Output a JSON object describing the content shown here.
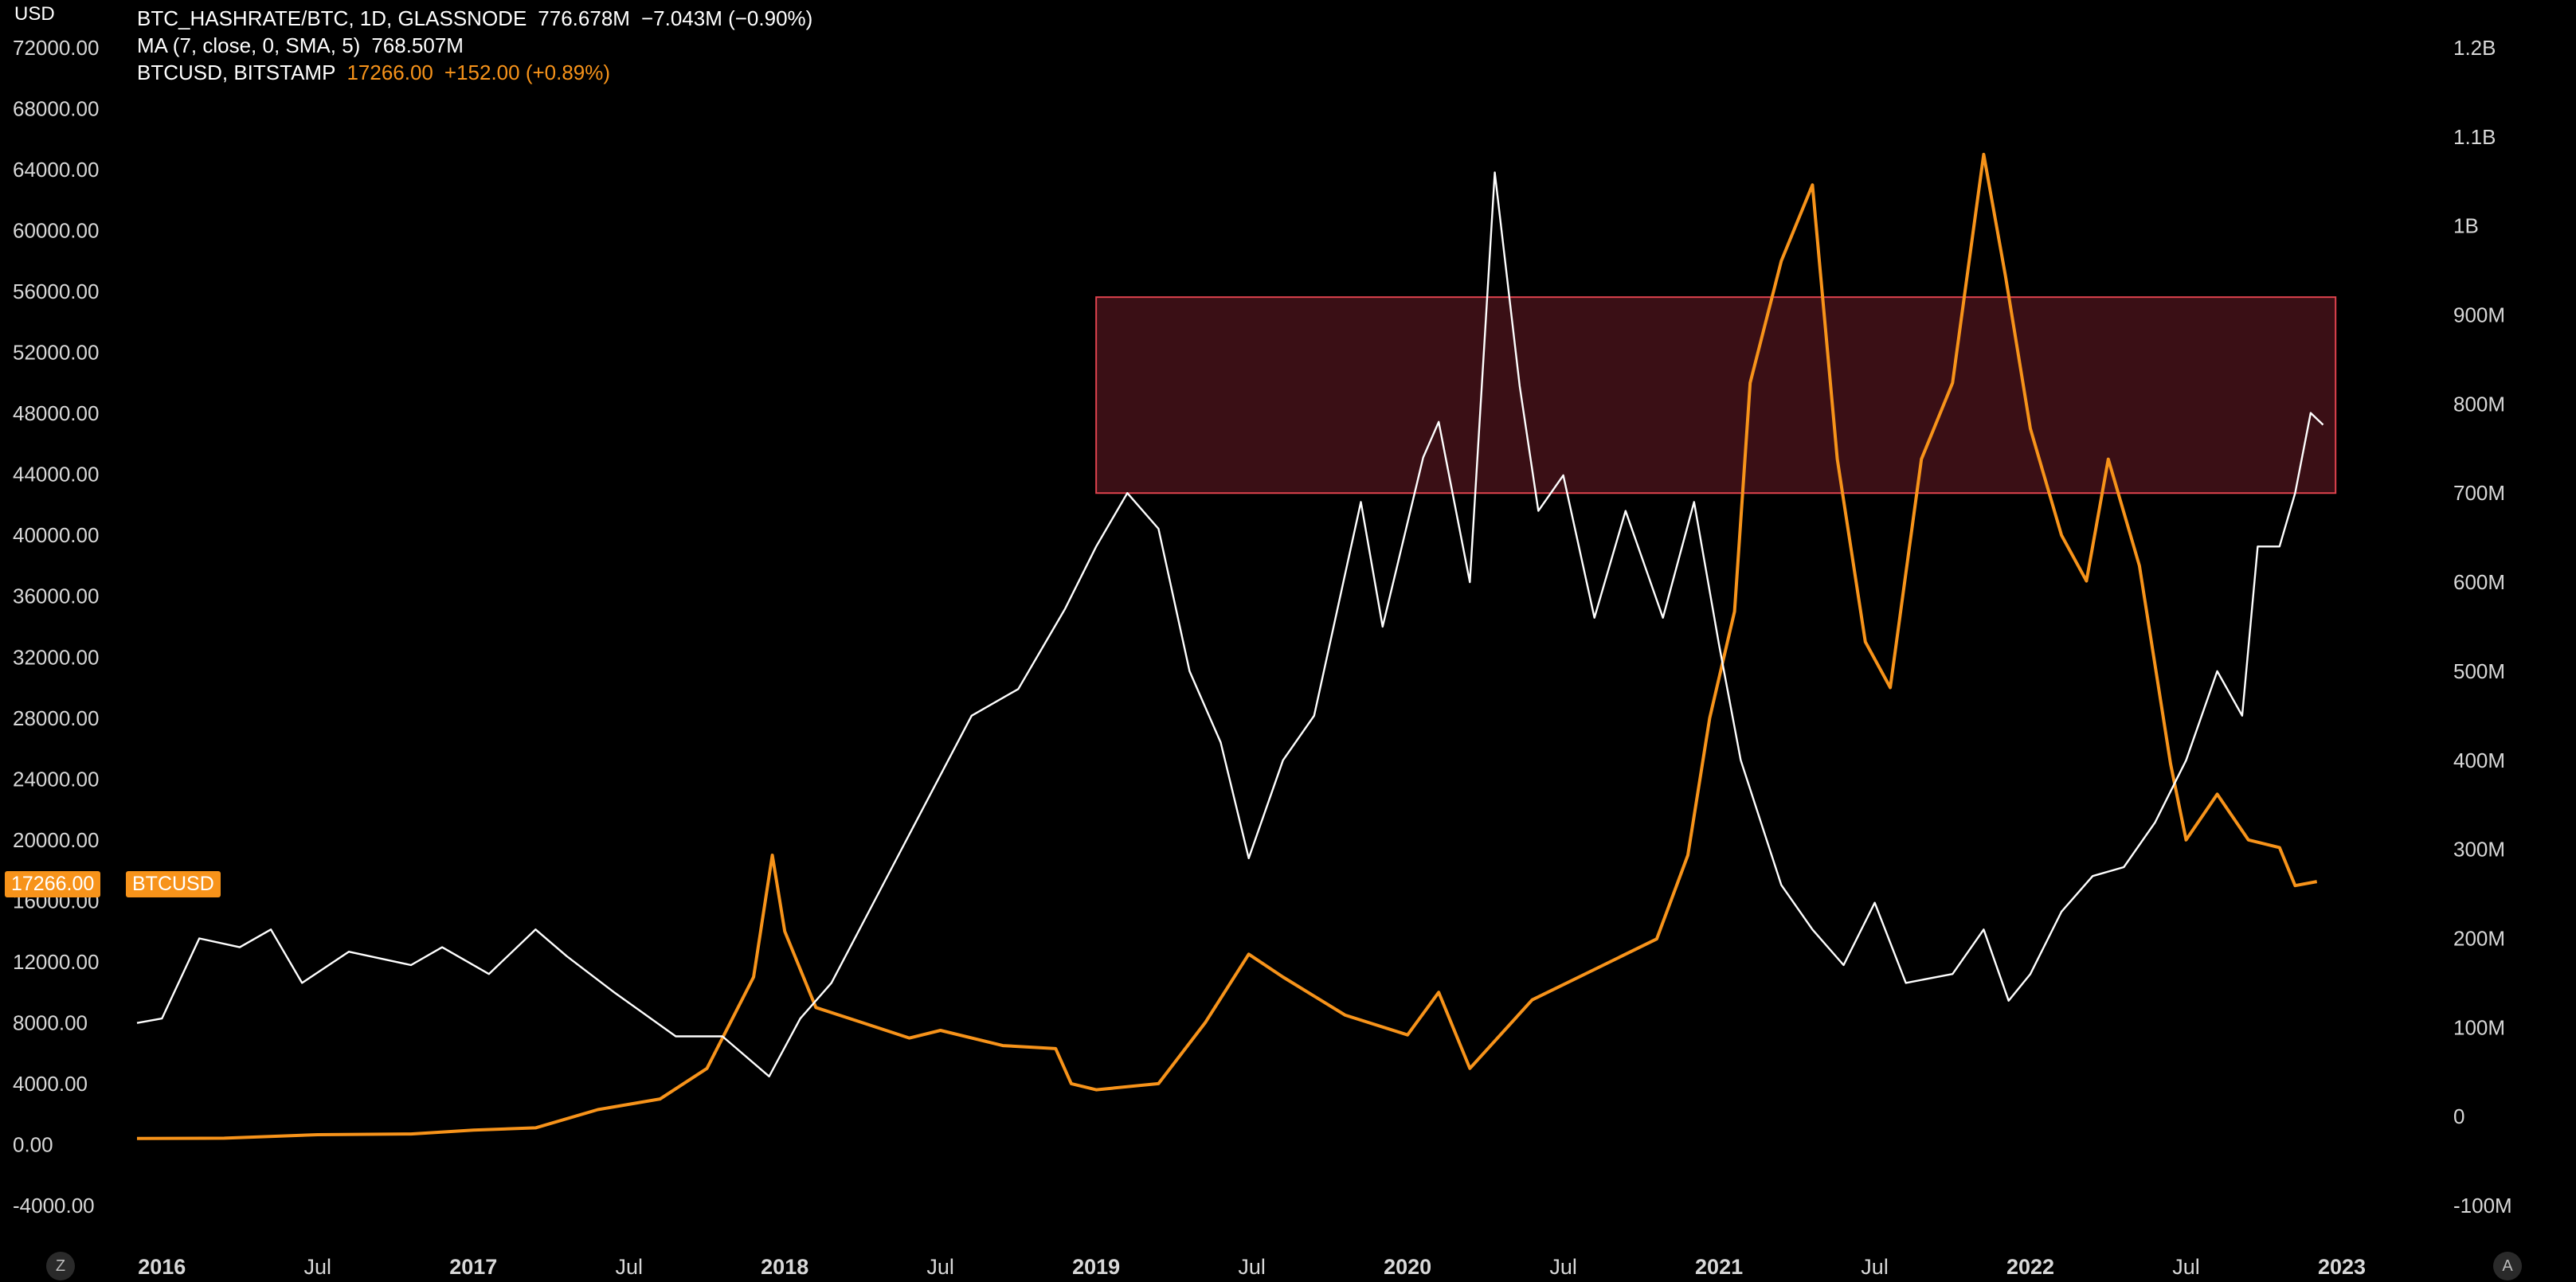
{
  "legend": {
    "line1": {
      "symbol": "BTC_HASHRATE/BTC, 1D, GLASSNODE",
      "value": "776.678M",
      "change": "−7.043M (−0.90%)"
    },
    "line2": {
      "symbol": "MA (7, close, 0, SMA, 5)",
      "value": "768.507M"
    },
    "line3": {
      "symbol": "BTCUSD, BITSTAMP",
      "value": "17266.00",
      "change": "+152.00 (+0.89%)"
    }
  },
  "left_axis_unit": "USD",
  "price_badge": {
    "value": "17266.00",
    "label": "BTCUSD"
  },
  "buttons": {
    "left": "Z",
    "right": "A"
  },
  "colors": {
    "btc": "#f7931a",
    "ratio": "#ffffff",
    "zone_fill": "#3a0f15",
    "zone_border": "#e0434e",
    "background": "#000000"
  },
  "chart_data": {
    "type": "line",
    "x_ticks": [
      "2016",
      "Jul",
      "2017",
      "Jul",
      "2018",
      "Jul",
      "2019",
      "Jul",
      "2020",
      "Jul",
      "2021",
      "Jul",
      "2022",
      "Jul",
      "2023"
    ],
    "x_tick_dates": [
      2016.0,
      2016.5,
      2017.0,
      2017.5,
      2018.0,
      2018.5,
      2019.0,
      2019.5,
      2020.0,
      2020.5,
      2021.0,
      2021.5,
      2022.0,
      2022.5,
      2023.0
    ],
    "x_range": [
      2015.92,
      2023.0
    ],
    "left_axis": {
      "ticks": [
        "72000.00",
        "68000.00",
        "64000.00",
        "60000.00",
        "56000.00",
        "52000.00",
        "48000.00",
        "44000.00",
        "40000.00",
        "36000.00",
        "32000.00",
        "28000.00",
        "24000.00",
        "20000.00",
        "16000.00",
        "12000.00",
        "8000.00",
        "4000.00",
        "0.00",
        "-4000.00"
      ],
      "range": [
        -4000,
        72000
      ]
    },
    "right_axis": {
      "ticks": [
        "1.2B",
        "1.1B",
        "1B",
        "900M",
        "800M",
        "700M",
        "600M",
        "500M",
        "400M",
        "300M",
        "200M",
        "100M",
        "0",
        "-100M"
      ],
      "range": [
        -100000000,
        1200000000
      ]
    },
    "zone": {
      "x": [
        2019.0,
        2022.98
      ],
      "y_right": [
        700000000,
        920000000
      ]
    },
    "series": [
      {
        "name": "BTCUSD",
        "axis": "left",
        "points": [
          [
            2015.92,
            400
          ],
          [
            2016.2,
            420
          ],
          [
            2016.5,
            650
          ],
          [
            2016.8,
            700
          ],
          [
            2017.0,
            950
          ],
          [
            2017.2,
            1100
          ],
          [
            2017.4,
            2300
          ],
          [
            2017.6,
            3000
          ],
          [
            2017.75,
            5000
          ],
          [
            2017.9,
            11000
          ],
          [
            2017.96,
            19000
          ],
          [
            2018.0,
            14000
          ],
          [
            2018.1,
            9000
          ],
          [
            2018.25,
            8000
          ],
          [
            2018.4,
            7000
          ],
          [
            2018.5,
            7500
          ],
          [
            2018.7,
            6500
          ],
          [
            2018.87,
            6300
          ],
          [
            2018.92,
            4000
          ],
          [
            2019.0,
            3600
          ],
          [
            2019.2,
            4000
          ],
          [
            2019.35,
            8000
          ],
          [
            2019.49,
            12500
          ],
          [
            2019.6,
            11000
          ],
          [
            2019.8,
            8500
          ],
          [
            2020.0,
            7200
          ],
          [
            2020.1,
            10000
          ],
          [
            2020.2,
            5000
          ],
          [
            2020.4,
            9500
          ],
          [
            2020.6,
            11500
          ],
          [
            2020.8,
            13500
          ],
          [
            2020.9,
            19000
          ],
          [
            2020.97,
            28000
          ],
          [
            2021.05,
            35000
          ],
          [
            2021.1,
            50000
          ],
          [
            2021.2,
            58000
          ],
          [
            2021.3,
            63000
          ],
          [
            2021.38,
            45000
          ],
          [
            2021.47,
            33000
          ],
          [
            2021.55,
            30000
          ],
          [
            2021.65,
            45000
          ],
          [
            2021.75,
            50000
          ],
          [
            2021.85,
            65000
          ],
          [
            2021.92,
            57000
          ],
          [
            2022.0,
            47000
          ],
          [
            2022.1,
            40000
          ],
          [
            2022.18,
            37000
          ],
          [
            2022.25,
            45000
          ],
          [
            2022.35,
            38000
          ],
          [
            2022.45,
            25000
          ],
          [
            2022.5,
            20000
          ],
          [
            2022.6,
            23000
          ],
          [
            2022.7,
            20000
          ],
          [
            2022.8,
            19500
          ],
          [
            2022.85,
            17000
          ],
          [
            2022.92,
            17266
          ]
        ]
      },
      {
        "name": "BTC_HASHRATE/BTC",
        "axis": "right",
        "points": [
          [
            2015.92,
            105000000
          ],
          [
            2016.0,
            110000000
          ],
          [
            2016.12,
            200000000
          ],
          [
            2016.25,
            190000000
          ],
          [
            2016.35,
            210000000
          ],
          [
            2016.45,
            150000000
          ],
          [
            2016.6,
            185000000
          ],
          [
            2016.8,
            170000000
          ],
          [
            2016.9,
            190000000
          ],
          [
            2017.05,
            160000000
          ],
          [
            2017.2,
            210000000
          ],
          [
            2017.3,
            180000000
          ],
          [
            2017.45,
            140000000
          ],
          [
            2017.65,
            90000000
          ],
          [
            2017.8,
            90000000
          ],
          [
            2017.95,
            45000000
          ],
          [
            2018.05,
            110000000
          ],
          [
            2018.15,
            150000000
          ],
          [
            2018.3,
            250000000
          ],
          [
            2018.45,
            350000000
          ],
          [
            2018.6,
            450000000
          ],
          [
            2018.75,
            480000000
          ],
          [
            2018.9,
            570000000
          ],
          [
            2019.0,
            640000000
          ],
          [
            2019.1,
            700000000
          ],
          [
            2019.2,
            660000000
          ],
          [
            2019.3,
            500000000
          ],
          [
            2019.4,
            420000000
          ],
          [
            2019.49,
            290000000
          ],
          [
            2019.6,
            400000000
          ],
          [
            2019.7,
            450000000
          ],
          [
            2019.85,
            690000000
          ],
          [
            2019.92,
            550000000
          ],
          [
            2020.05,
            740000000
          ],
          [
            2020.1,
            780000000
          ],
          [
            2020.2,
            600000000
          ],
          [
            2020.28,
            1060000000
          ],
          [
            2020.36,
            820000000
          ],
          [
            2020.42,
            680000000
          ],
          [
            2020.5,
            720000000
          ],
          [
            2020.6,
            560000000
          ],
          [
            2020.7,
            680000000
          ],
          [
            2020.82,
            560000000
          ],
          [
            2020.92,
            690000000
          ],
          [
            2021.0,
            530000000
          ],
          [
            2021.07,
            400000000
          ],
          [
            2021.2,
            260000000
          ],
          [
            2021.3,
            210000000
          ],
          [
            2021.4,
            170000000
          ],
          [
            2021.5,
            240000000
          ],
          [
            2021.6,
            150000000
          ],
          [
            2021.75,
            160000000
          ],
          [
            2021.85,
            210000000
          ],
          [
            2021.93,
            130000000
          ],
          [
            2022.0,
            160000000
          ],
          [
            2022.1,
            230000000
          ],
          [
            2022.2,
            270000000
          ],
          [
            2022.3,
            280000000
          ],
          [
            2022.4,
            330000000
          ],
          [
            2022.5,
            400000000
          ],
          [
            2022.6,
            500000000
          ],
          [
            2022.68,
            450000000
          ],
          [
            2022.73,
            640000000
          ],
          [
            2022.8,
            640000000
          ],
          [
            2022.85,
            700000000
          ],
          [
            2022.9,
            790000000
          ],
          [
            2022.94,
            776678000
          ]
        ]
      }
    ]
  }
}
